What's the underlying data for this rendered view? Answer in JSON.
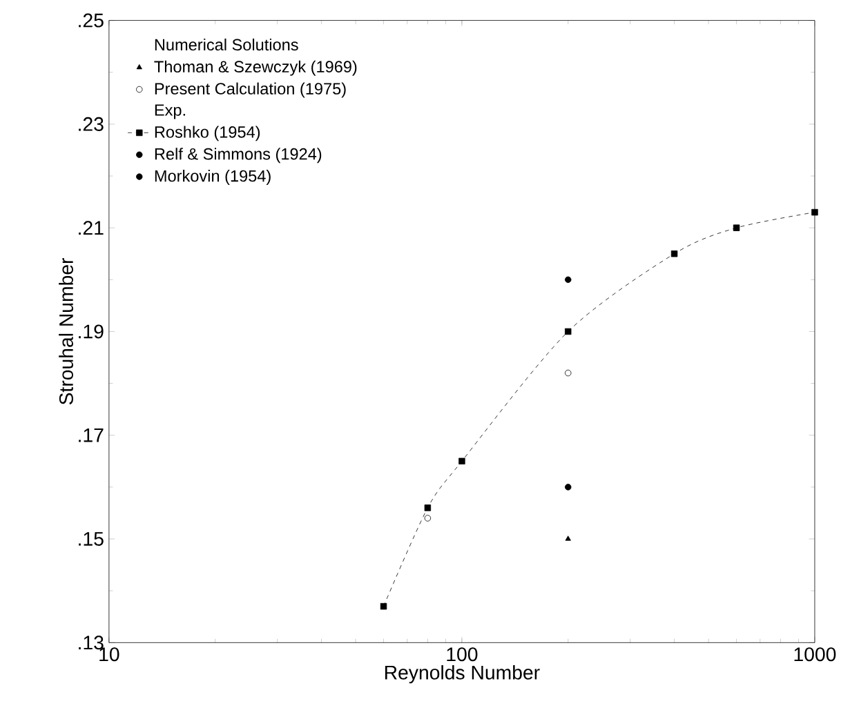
{
  "chart_data": {
    "type": "scatter",
    "xlabel": "Reynolds Number",
    "ylabel": "Strouhal Number",
    "log": "x",
    "xlim": [
      10,
      1000
    ],
    "xticks": [
      10,
      100,
      1000
    ],
    "ylim": [
      0.13,
      0.25
    ],
    "yticks": [
      {
        "value": 0.13,
        "label": ".13"
      },
      {
        "value": 0.15,
        "label": ".15"
      },
      {
        "value": 0.17,
        "label": ".17"
      },
      {
        "value": 0.19,
        "label": ".19"
      },
      {
        "value": 0.21,
        "label": ".21"
      },
      {
        "value": 0.23,
        "label": ".23"
      },
      {
        "value": 0.25,
        "label": ".25"
      }
    ],
    "grid": false,
    "legend": "top left",
    "annotations": [
      "Numerical Solutions",
      "Exp."
    ],
    "series": [
      {
        "name": "Thoman & Szewczyk (1969)",
        "color": "#000000",
        "marker": "triangle",
        "x": [
          200
        ],
        "values": [
          0.15
        ]
      },
      {
        "name": "Present Calculation (1975)",
        "color": "#000000",
        "marker": "open circle",
        "x": [
          80,
          200
        ],
        "values": [
          0.154,
          0.182
        ]
      },
      {
        "name": "Roshko (1954)",
        "type": "line",
        "line_style": "dashed",
        "color": "#000000",
        "marker": "square",
        "x": [
          60,
          80,
          100,
          200,
          400,
          600,
          1000
        ],
        "values": [
          0.137,
          0.156,
          0.165,
          0.19,
          0.205,
          0.21,
          0.213
        ]
      },
      {
        "name": "Relf & Simmons (1924)",
        "color": "#000000",
        "marker": "circle",
        "x": [
          200
        ],
        "values": [
          0.2
        ]
      },
      {
        "name": "Morkovin (1954)",
        "color": "#000000",
        "marker": "circle",
        "x": [
          200
        ],
        "values": [
          0.16
        ]
      }
    ]
  }
}
